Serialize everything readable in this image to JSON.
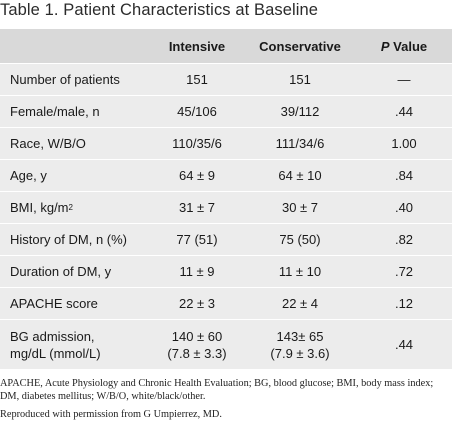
{
  "title": "Table 1.  Patient Characteristics at Baseline",
  "header": {
    "col_label": "",
    "col_intensive": "Intensive",
    "col_conservative": "Conservative",
    "col_p_italic": "P",
    "col_p_rest": " Value"
  },
  "rows": [
    {
      "label": "Number of patients",
      "intensive": "151",
      "conservative": "151",
      "p": "—"
    },
    {
      "label": "Female/male, n",
      "intensive": "45/106",
      "conservative": "39/112",
      "p": ".44"
    },
    {
      "label": "Race, W/B/O",
      "intensive": "110/35/6",
      "conservative": "111/34/6",
      "p": "1.00"
    },
    {
      "label": "Age, y",
      "intensive": "64 ± 9",
      "conservative": "64 ± 10",
      "p": ".84"
    },
    {
      "label_main": "BMI, kg/m",
      "label_sup": "2",
      "intensive": "31 ± 7",
      "conservative": "30 ± 7",
      "p": ".40"
    },
    {
      "label": "History of DM, n (%)",
      "intensive": "77 (51)",
      "conservative": "75 (50)",
      "p": ".82"
    },
    {
      "label": "Duration of DM, y",
      "intensive": "11 ± 9",
      "conservative": "11 ± 10",
      "p": ".72"
    },
    {
      "label": "APACHE score",
      "intensive": "22 ± 3",
      "conservative": "22 ± 4",
      "p": ".12"
    },
    {
      "label_line1": "BG admission,",
      "label_line2": "mg/dL (mmol/L)",
      "intensive_line1": "140 ± 60",
      "intensive_line2": "(7.8 ± 3.3)",
      "conservative_line1": "143± 65",
      "conservative_line2": "(7.9 ± 3.6)",
      "p": ".44"
    }
  ],
  "footnote": "APACHE, Acute Physiology and Chronic Health Evaluation; BG, blood glucose; BMI, body mass index; DM, diabetes mellitus; W/B/O, white/black/other.",
  "credit": "Reproduced with permission from G Umpierrez, MD."
}
